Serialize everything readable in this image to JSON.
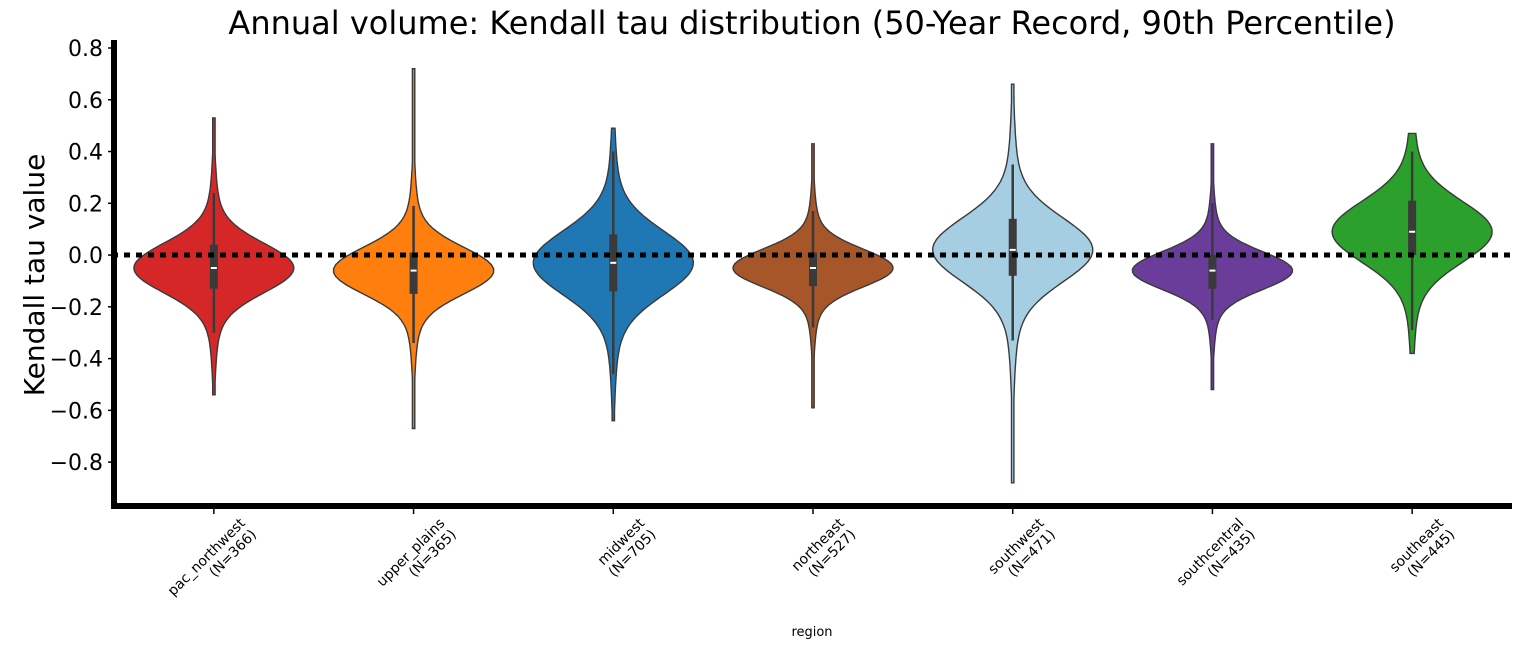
{
  "chart_data": {
    "type": "violin",
    "title": "Annual volume: Kendall tau distribution (50-Year Record, 90th Percentile)",
    "xlabel": "region",
    "ylabel": "Kendall tau value",
    "ylim": [
      -0.97,
      0.82
    ],
    "yticks": [
      0.8,
      0.6,
      0.4,
      0.2,
      0.0,
      -0.2,
      -0.4,
      -0.6,
      -0.8
    ],
    "ytick_labels": [
      "0.8",
      "0.6",
      "0.4",
      "0.2",
      "0.0",
      "−0.2",
      "−0.4",
      "−0.6",
      "−0.8"
    ],
    "reference_line": 0.0,
    "categories": [
      {
        "name": "pac_northwest",
        "n_label": "(N=366)",
        "color": "#d62728",
        "min": -0.54,
        "max": 0.53,
        "q1": -0.13,
        "median": -0.05,
        "q3": 0.04,
        "whisker_low": -0.3,
        "whisker_high": 0.24
      },
      {
        "name": "upper_plains",
        "n_label": "(N=365)",
        "color": "#ff7f0e",
        "min": -0.67,
        "max": 0.72,
        "q1": -0.15,
        "median": -0.06,
        "q3": 0.01,
        "whisker_low": -0.34,
        "whisker_high": 0.19
      },
      {
        "name": "midwest",
        "n_label": "(N=705)",
        "color": "#1f77b4",
        "min": -0.64,
        "max": 0.49,
        "q1": -0.14,
        "median": -0.03,
        "q3": 0.08,
        "whisker_low": -0.46,
        "whisker_high": 0.4
      },
      {
        "name": "northeast",
        "n_label": "(N=527)",
        "color": "#a65628",
        "min": -0.59,
        "max": 0.43,
        "q1": -0.12,
        "median": -0.05,
        "q3": 0.01,
        "whisker_low": -0.28,
        "whisker_high": 0.17
      },
      {
        "name": "southwest",
        "n_label": "(N=471)",
        "color": "#a6cee3",
        "min": -0.88,
        "max": 0.66,
        "q1": -0.08,
        "median": 0.02,
        "q3": 0.14,
        "whisker_low": -0.33,
        "whisker_high": 0.35
      },
      {
        "name": "southcentral",
        "n_label": "(N=435)",
        "color": "#6a3d9a",
        "min": -0.52,
        "max": 0.43,
        "q1": -0.13,
        "median": -0.06,
        "q3": 0.0,
        "whisker_low": -0.25,
        "whisker_high": 0.2
      },
      {
        "name": "southeast",
        "n_label": "(N=445)",
        "color": "#2ca02c",
        "min": -0.38,
        "max": 0.47,
        "q1": 0.0,
        "median": 0.09,
        "q3": 0.21,
        "whisker_low": -0.29,
        "whisker_high": 0.4
      }
    ]
  }
}
